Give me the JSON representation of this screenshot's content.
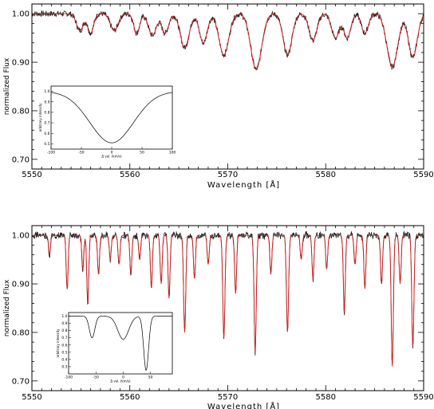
{
  "chart_data": [
    {
      "type": "line",
      "panel": "top",
      "title": "",
      "xlabel": "Wavelength  [Å]",
      "ylabel": "normalized Flux",
      "xlim": [
        5550,
        5590
      ],
      "ylim": [
        0.68,
        1.02
      ],
      "xticks": [
        "5550",
        "5560",
        "5570",
        "5580",
        "5590"
      ],
      "yticks": [
        "0.70",
        "0.80",
        "0.90",
        "1.00"
      ],
      "grid": false,
      "continuum": 1.0,
      "lines": [
        {
          "center": 5554.9,
          "depth": 0.035,
          "width": 0.35
        },
        {
          "center": 5556.0,
          "depth": 0.04,
          "width": 0.3
        },
        {
          "center": 5558.4,
          "depth": 0.035,
          "width": 0.4
        },
        {
          "center": 5560.7,
          "depth": 0.04,
          "width": 0.3
        },
        {
          "center": 5562.3,
          "depth": 0.045,
          "width": 0.4
        },
        {
          "center": 5563.6,
          "depth": 0.04,
          "width": 0.35
        },
        {
          "center": 5565.6,
          "depth": 0.07,
          "width": 0.45
        },
        {
          "center": 5567.5,
          "depth": 0.06,
          "width": 0.4
        },
        {
          "center": 5569.6,
          "depth": 0.085,
          "width": 0.5
        },
        {
          "center": 5572.9,
          "depth": 0.115,
          "width": 0.55
        },
        {
          "center": 5576.1,
          "depth": 0.085,
          "width": 0.45
        },
        {
          "center": 5578.7,
          "depth": 0.055,
          "width": 0.4
        },
        {
          "center": 5581.0,
          "depth": 0.05,
          "width": 0.4
        },
        {
          "center": 5582.2,
          "depth": 0.05,
          "width": 0.35
        },
        {
          "center": 5584.0,
          "depth": 0.04,
          "width": 0.35
        },
        {
          "center": 5586.8,
          "depth": 0.11,
          "width": 0.55
        },
        {
          "center": 5588.9,
          "depth": 0.09,
          "width": 0.45
        }
      ],
      "inset": {
        "xlabel": "Δ vel. (km/s)",
        "ylabel": "arbitrary intensity",
        "xticks": [
          "-100",
          "-50",
          "0",
          "50",
          "100"
        ],
        "yticks": [
          "0.5",
          "0.6",
          "0.7",
          "0.8",
          "0.9",
          "1.0"
        ],
        "xlim": [
          -100,
          100
        ],
        "ylim": [
          0.45,
          1.05
        ],
        "profile": [
          {
            "center": 0,
            "depth": 0.49,
            "width": 36
          }
        ]
      }
    },
    {
      "type": "line",
      "panel": "bottom",
      "title": "",
      "xlabel": "Wavelength  [Å]",
      "ylabel": "normalized Flux",
      "xlim": [
        5550,
        5590
      ],
      "ylim": [
        0.68,
        1.02
      ],
      "xticks": [
        "5550",
        "5560",
        "5570",
        "5580",
        "5590"
      ],
      "yticks": [
        "0.70",
        "0.80",
        "0.90",
        "1.00"
      ],
      "grid": false,
      "continuum": 1.0,
      "lines": [
        {
          "center": 5551.8,
          "depth": 0.04,
          "width": 0.1
        },
        {
          "center": 5553.6,
          "depth": 0.11,
          "width": 0.1
        },
        {
          "center": 5555.2,
          "depth": 0.07,
          "width": 0.1
        },
        {
          "center": 5555.7,
          "depth": 0.14,
          "width": 0.1
        },
        {
          "center": 5556.8,
          "depth": 0.08,
          "width": 0.1
        },
        {
          "center": 5558.0,
          "depth": 0.05,
          "width": 0.1
        },
        {
          "center": 5558.9,
          "depth": 0.06,
          "width": 0.1
        },
        {
          "center": 5560.1,
          "depth": 0.08,
          "width": 0.1
        },
        {
          "center": 5561.0,
          "depth": 0.05,
          "width": 0.1
        },
        {
          "center": 5562.2,
          "depth": 0.11,
          "width": 0.1
        },
        {
          "center": 5563.2,
          "depth": 0.1,
          "width": 0.1
        },
        {
          "center": 5564.0,
          "depth": 0.13,
          "width": 0.1
        },
        {
          "center": 5565.6,
          "depth": 0.2,
          "width": 0.11
        },
        {
          "center": 5566.6,
          "depth": 0.09,
          "width": 0.1
        },
        {
          "center": 5568.0,
          "depth": 0.06,
          "width": 0.1
        },
        {
          "center": 5569.6,
          "depth": 0.21,
          "width": 0.11
        },
        {
          "center": 5570.8,
          "depth": 0.12,
          "width": 0.1
        },
        {
          "center": 5572.8,
          "depth": 0.24,
          "width": 0.11
        },
        {
          "center": 5574.4,
          "depth": 0.08,
          "width": 0.1
        },
        {
          "center": 5576.1,
          "depth": 0.2,
          "width": 0.11
        },
        {
          "center": 5577.5,
          "depth": 0.05,
          "width": 0.1
        },
        {
          "center": 5578.7,
          "depth": 0.09,
          "width": 0.1
        },
        {
          "center": 5580.1,
          "depth": 0.07,
          "width": 0.1
        },
        {
          "center": 5581.9,
          "depth": 0.16,
          "width": 0.1
        },
        {
          "center": 5583.0,
          "depth": 0.06,
          "width": 0.1
        },
        {
          "center": 5584.0,
          "depth": 0.11,
          "width": 0.1
        },
        {
          "center": 5585.7,
          "depth": 0.1,
          "width": 0.1
        },
        {
          "center": 5586.8,
          "depth": 0.27,
          "width": 0.11
        },
        {
          "center": 5587.6,
          "depth": 0.1,
          "width": 0.1
        },
        {
          "center": 5588.9,
          "depth": 0.23,
          "width": 0.11
        }
      ],
      "inset": {
        "xlabel": "Δ vel. (km/s)",
        "ylabel": "arbitrary intensity",
        "xticks": [
          "-100",
          "-50",
          "0",
          "50"
        ],
        "yticks": [
          "0.3",
          "0.4",
          "0.5",
          "0.6",
          "0.7",
          "0.8",
          "0.9",
          "1.0"
        ],
        "xlim": [
          -100,
          90
        ],
        "ylim": [
          0.2,
          1.05
        ],
        "profile": [
          {
            "center": -57,
            "depth": 0.3,
            "width": 5
          },
          {
            "center": 0,
            "depth": 0.32,
            "width": 10
          },
          {
            "center": 42,
            "depth": 0.75,
            "width": 4.5
          }
        ]
      }
    }
  ],
  "colors": {
    "observed": "#1a1a1a",
    "model": "#d41f1f",
    "axis": "#000000"
  }
}
